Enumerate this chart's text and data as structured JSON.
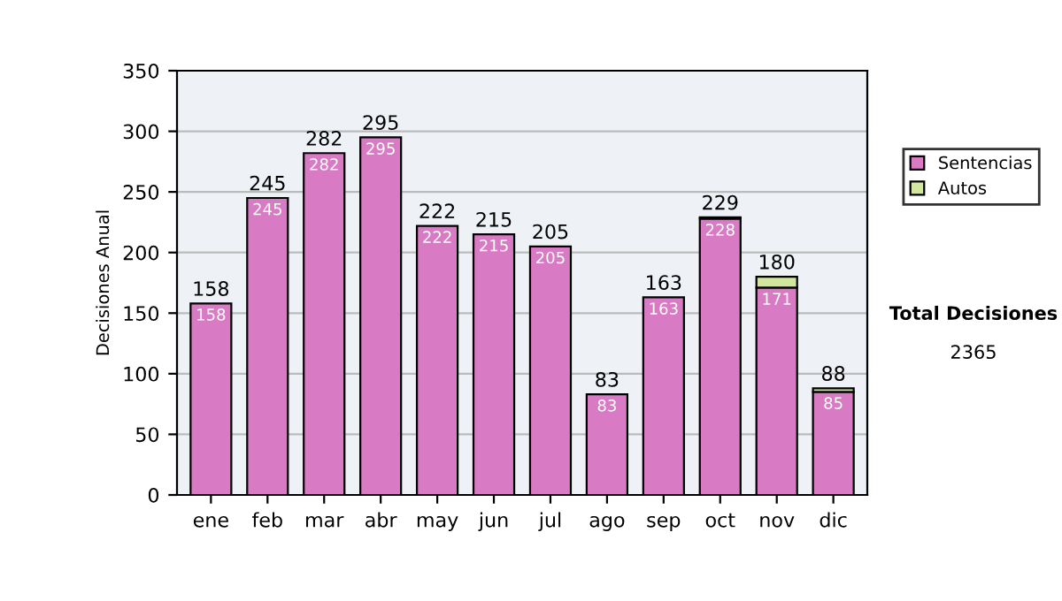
{
  "chart_data": {
    "type": "bar",
    "stacked": true,
    "ylabel": "Decisiones Anual",
    "categories": [
      "ene",
      "feb",
      "mar",
      "abr",
      "may",
      "jun",
      "jul",
      "ago",
      "sep",
      "oct",
      "nov",
      "dic"
    ],
    "series": [
      {
        "name": "Sentencias",
        "color": "#d97bc4",
        "values": [
          158,
          245,
          282,
          295,
          222,
          215,
          205,
          83,
          163,
          228,
          171,
          85
        ],
        "value_labels": [
          "158",
          "245",
          "282",
          "295",
          "222",
          "215",
          "205",
          "83",
          "163",
          "228",
          "171",
          "85"
        ]
      },
      {
        "name": "Autos",
        "color": "#d2e6a0",
        "values": [
          null,
          null,
          null,
          null,
          null,
          null,
          null,
          null,
          null,
          1,
          9,
          3
        ]
      }
    ],
    "totals": [
      "158",
      "245",
      "282",
      "295",
      "222",
      "215",
      "205",
      "83",
      "163",
      "229",
      "180",
      "88"
    ],
    "ylim": [
      0,
      350
    ],
    "yticks": [
      0,
      50,
      100,
      150,
      200,
      250,
      300,
      350
    ],
    "grid": "y",
    "legend": "right",
    "annotations": [
      "Total Decisiones",
      "2365"
    ]
  }
}
